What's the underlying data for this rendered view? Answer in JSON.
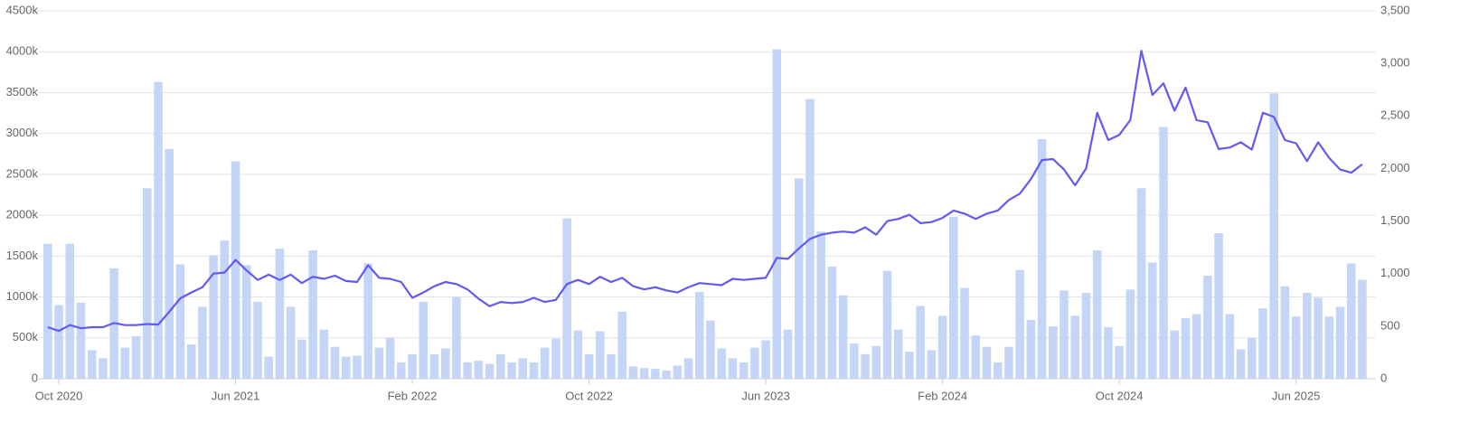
{
  "chart_data": {
    "type": "combo",
    "x": [
      -0.5,
      0,
      0.5,
      1,
      1.5,
      2,
      2.5,
      3,
      3.5,
      4,
      4.5,
      5,
      5.5,
      6,
      6.5,
      7,
      7.5,
      8,
      8.5,
      9,
      9.5,
      10,
      10.5,
      11,
      11.5,
      12,
      12.5,
      13,
      13.5,
      14,
      14.5,
      15,
      15.5,
      16,
      16.5,
      17,
      17.5,
      18,
      18.5,
      19,
      19.5,
      20,
      20.5,
      21,
      21.5,
      22,
      22.5,
      23,
      23.5,
      24,
      24.5,
      25,
      25.5,
      26,
      26.5,
      27,
      27.5,
      28,
      28.5,
      29,
      29.5,
      30,
      30.5,
      31,
      31.5,
      32,
      32.5,
      33,
      33.5,
      34,
      34.5,
      35,
      35.5,
      36,
      36.5,
      37,
      37.5,
      38,
      38.5,
      39,
      39.5,
      40,
      40.5,
      41,
      41.5,
      42,
      42.5,
      43,
      43.5,
      44,
      44.5,
      45,
      45.5,
      46,
      46.5,
      47,
      47.5,
      48,
      48.5,
      49,
      49.5,
      50,
      50.5,
      51,
      51.5,
      52,
      52.5,
      53,
      53.5,
      54,
      54.5,
      55,
      55.5,
      56,
      56.5,
      57,
      57.5,
      58,
      58.5,
      59
    ],
    "series": [
      {
        "type": "bar",
        "color": "#c4d5f7",
        "values": [
          1650000,
          900000,
          1650000,
          930000,
          350000,
          250000,
          1350000,
          380000,
          520000,
          2330000,
          3630000,
          2810000,
          1400000,
          420000,
          880000,
          1510000,
          1690000,
          2660000,
          1390000,
          940000,
          270000,
          1590000,
          880000,
          480000,
          1570000,
          600000,
          390000,
          270000,
          280000,
          1410000,
          380000,
          500000,
          200000,
          300000,
          940000,
          300000,
          370000,
          1000000,
          200000,
          220000,
          180000,
          300000,
          200000,
          250000,
          200000,
          380000,
          490000,
          1960000,
          590000,
          300000,
          580000,
          300000,
          820000,
          150000,
          130000,
          120000,
          100000,
          160000,
          250000,
          1060000,
          710000,
          370000,
          250000,
          200000,
          380000,
          470000,
          4030000,
          600000,
          2450000,
          3420000,
          1800000,
          1370000,
          1020000,
          430000,
          300000,
          400000,
          1320000,
          600000,
          330000,
          890000,
          350000,
          770000,
          1980000,
          1110000,
          530000,
          390000,
          200000,
          390000,
          1330000,
          720000,
          2930000,
          640000,
          1080000,
          770000,
          1050000,
          1570000,
          630000,
          400000,
          1090000,
          2330000,
          1420000,
          3080000,
          590000,
          740000,
          790000,
          1260000,
          1780000,
          790000,
          360000,
          500000,
          860000,
          3490000,
          1130000,
          760000,
          1050000,
          990000,
          760000,
          880000,
          1410000,
          1210000
        ]
      },
      {
        "type": "line",
        "axis": "y2",
        "color": "#6459f0",
        "values": [
          490,
          455,
          510,
          480,
          490,
          490,
          530,
          510,
          510,
          520,
          515,
          636,
          765,
          820,
          870,
          1000,
          1010,
          1130,
          1030,
          940,
          990,
          940,
          990,
          910,
          970,
          950,
          980,
          930,
          920,
          1080,
          960,
          950,
          920,
          770,
          820,
          880,
          920,
          900,
          850,
          760,
          690,
          730,
          720,
          730,
          770,
          730,
          750,
          900,
          940,
          900,
          970,
          920,
          960,
          880,
          850,
          870,
          840,
          820,
          870,
          910,
          900,
          890,
          950,
          940,
          950,
          960,
          1150,
          1140,
          1240,
          1330,
          1370,
          1390,
          1400,
          1390,
          1440,
          1370,
          1500,
          1520,
          1560,
          1480,
          1490,
          1530,
          1600,
          1570,
          1520,
          1570,
          1600,
          1700,
          1760,
          1900,
          2080,
          2090,
          1990,
          1840,
          2000,
          2530,
          2270,
          2320,
          2460,
          3120,
          2700,
          2810,
          2550,
          2770,
          2460,
          2440,
          2185,
          2200,
          2250,
          2180,
          2530,
          2490,
          2270,
          2240,
          2070,
          2250,
          2100,
          1990,
          1960,
          2040
        ]
      }
    ],
    "xlim": [
      -1,
      59.6
    ],
    "xticks": [
      {
        "value": 0,
        "label": "Oct 2020"
      },
      {
        "value": 8,
        "label": "Jun 2021"
      },
      {
        "value": 16,
        "label": "Feb 2022"
      },
      {
        "value": 24,
        "label": "Oct 2022"
      },
      {
        "value": 32,
        "label": "Jun 2023"
      },
      {
        "value": 40,
        "label": "Feb 2024"
      },
      {
        "value": 48,
        "label": "Oct 2024"
      },
      {
        "value": 56,
        "label": "Jun 2025"
      }
    ],
    "ylim": [
      0,
      4500000
    ],
    "yticks": [
      0,
      {
        "value": 500000,
        "label": "500k"
      },
      {
        "value": 1000000,
        "label": "1000k"
      },
      {
        "value": 1500000,
        "label": "1500k"
      },
      {
        "value": 2000000,
        "label": "2000k"
      },
      {
        "value": 2500000,
        "label": "2500k"
      },
      {
        "value": 3000000,
        "label": "3000k"
      },
      {
        "value": 3500000,
        "label": "3500k"
      },
      {
        "value": 4000000,
        "label": "4000k"
      },
      {
        "value": 4500000,
        "label": "4500k"
      }
    ],
    "y2lim": [
      0,
      3500
    ],
    "y2ticks": [
      0,
      500,
      {
        "value": 1000,
        "label": "1,000"
      },
      {
        "value": 1500,
        "label": "1,500"
      },
      {
        "value": 2000,
        "label": "2,000"
      },
      {
        "value": 2500,
        "label": "2,500"
      },
      {
        "value": 3000,
        "label": "3,000"
      },
      {
        "value": 3500,
        "label": "3,500"
      }
    ],
    "grid": true
  }
}
